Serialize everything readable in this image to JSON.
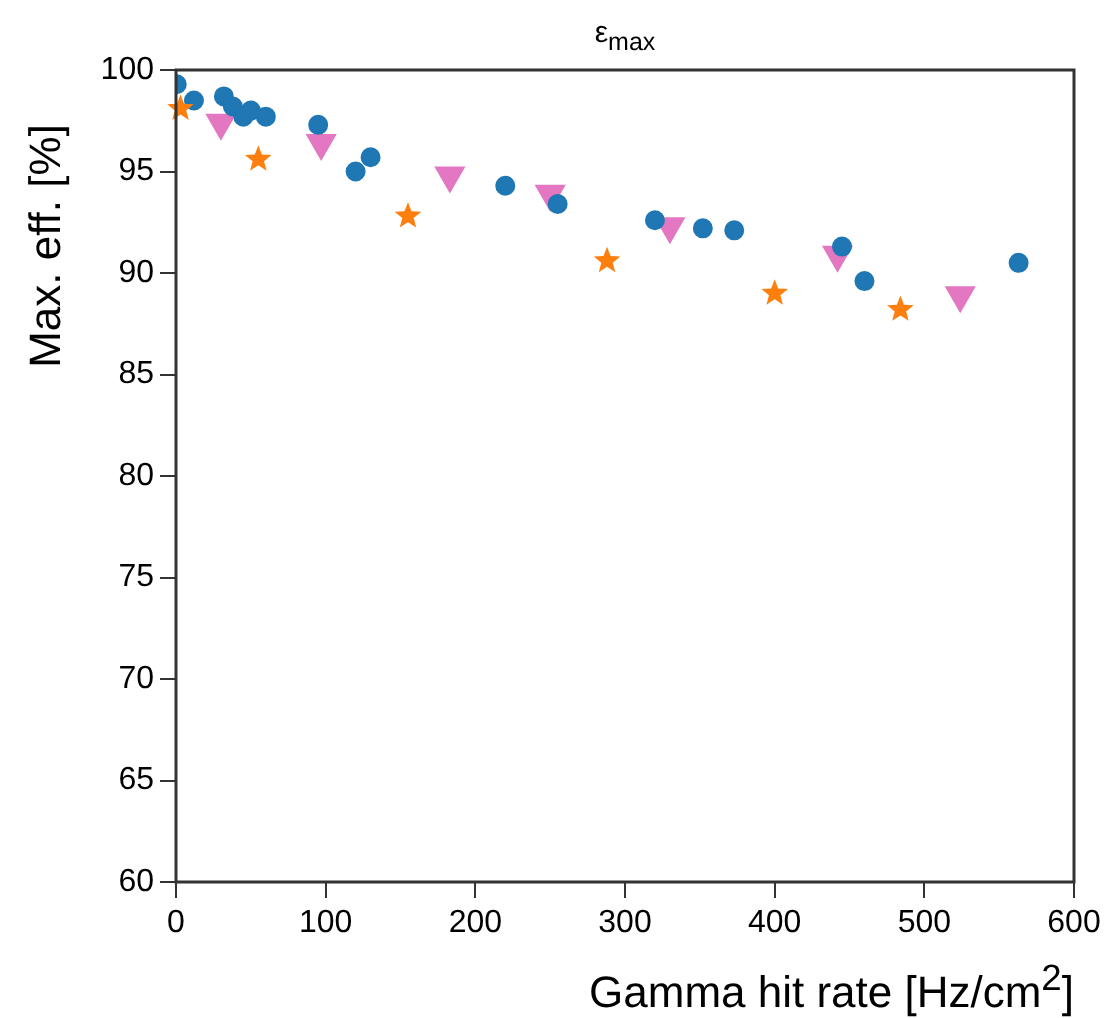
{
  "chart_data": {
    "type": "scatter",
    "title": "ε$_{max}$",
    "xlabel": "Gamma hit rate [Hz/cm$^{2}$]",
    "ylabel": "Max. eff. [%]",
    "xlim": [
      0,
      600
    ],
    "xticks": [
      0,
      100,
      200,
      300,
      400,
      500,
      600
    ],
    "ylim": [
      60,
      100
    ],
    "yticks": [
      60,
      65,
      70,
      75,
      80,
      85,
      90,
      95,
      100
    ],
    "series": [
      {
        "color": "#1f77b4",
        "marker": "circle",
        "x": [
          0.5,
          12,
          32,
          38,
          45,
          50,
          60,
          95,
          120,
          130,
          220,
          255,
          320,
          352,
          373,
          445,
          460,
          563
        ],
        "values": [
          99.3,
          98.5,
          98.7,
          98.2,
          97.7,
          98,
          97.7,
          97.3,
          95,
          95.7,
          94.3,
          93.4,
          92.6,
          92.2,
          92.1,
          91.3,
          89.6,
          90.5
        ]
      },
      {
        "color": "#ff7f0e",
        "marker": "star",
        "x": [
          3,
          55,
          155,
          288,
          400,
          484
        ],
        "values": [
          98.1,
          95.6,
          92.8,
          90.6,
          89,
          88.2
        ]
      },
      {
        "color": "#e377c2",
        "marker": "triangle",
        "x": [
          30,
          97,
          183,
          250,
          330,
          442,
          524
        ],
        "values": [
          97.4,
          96.4,
          94.8,
          93.9,
          92.3,
          90.9,
          88.9
        ]
      }
    ]
  }
}
